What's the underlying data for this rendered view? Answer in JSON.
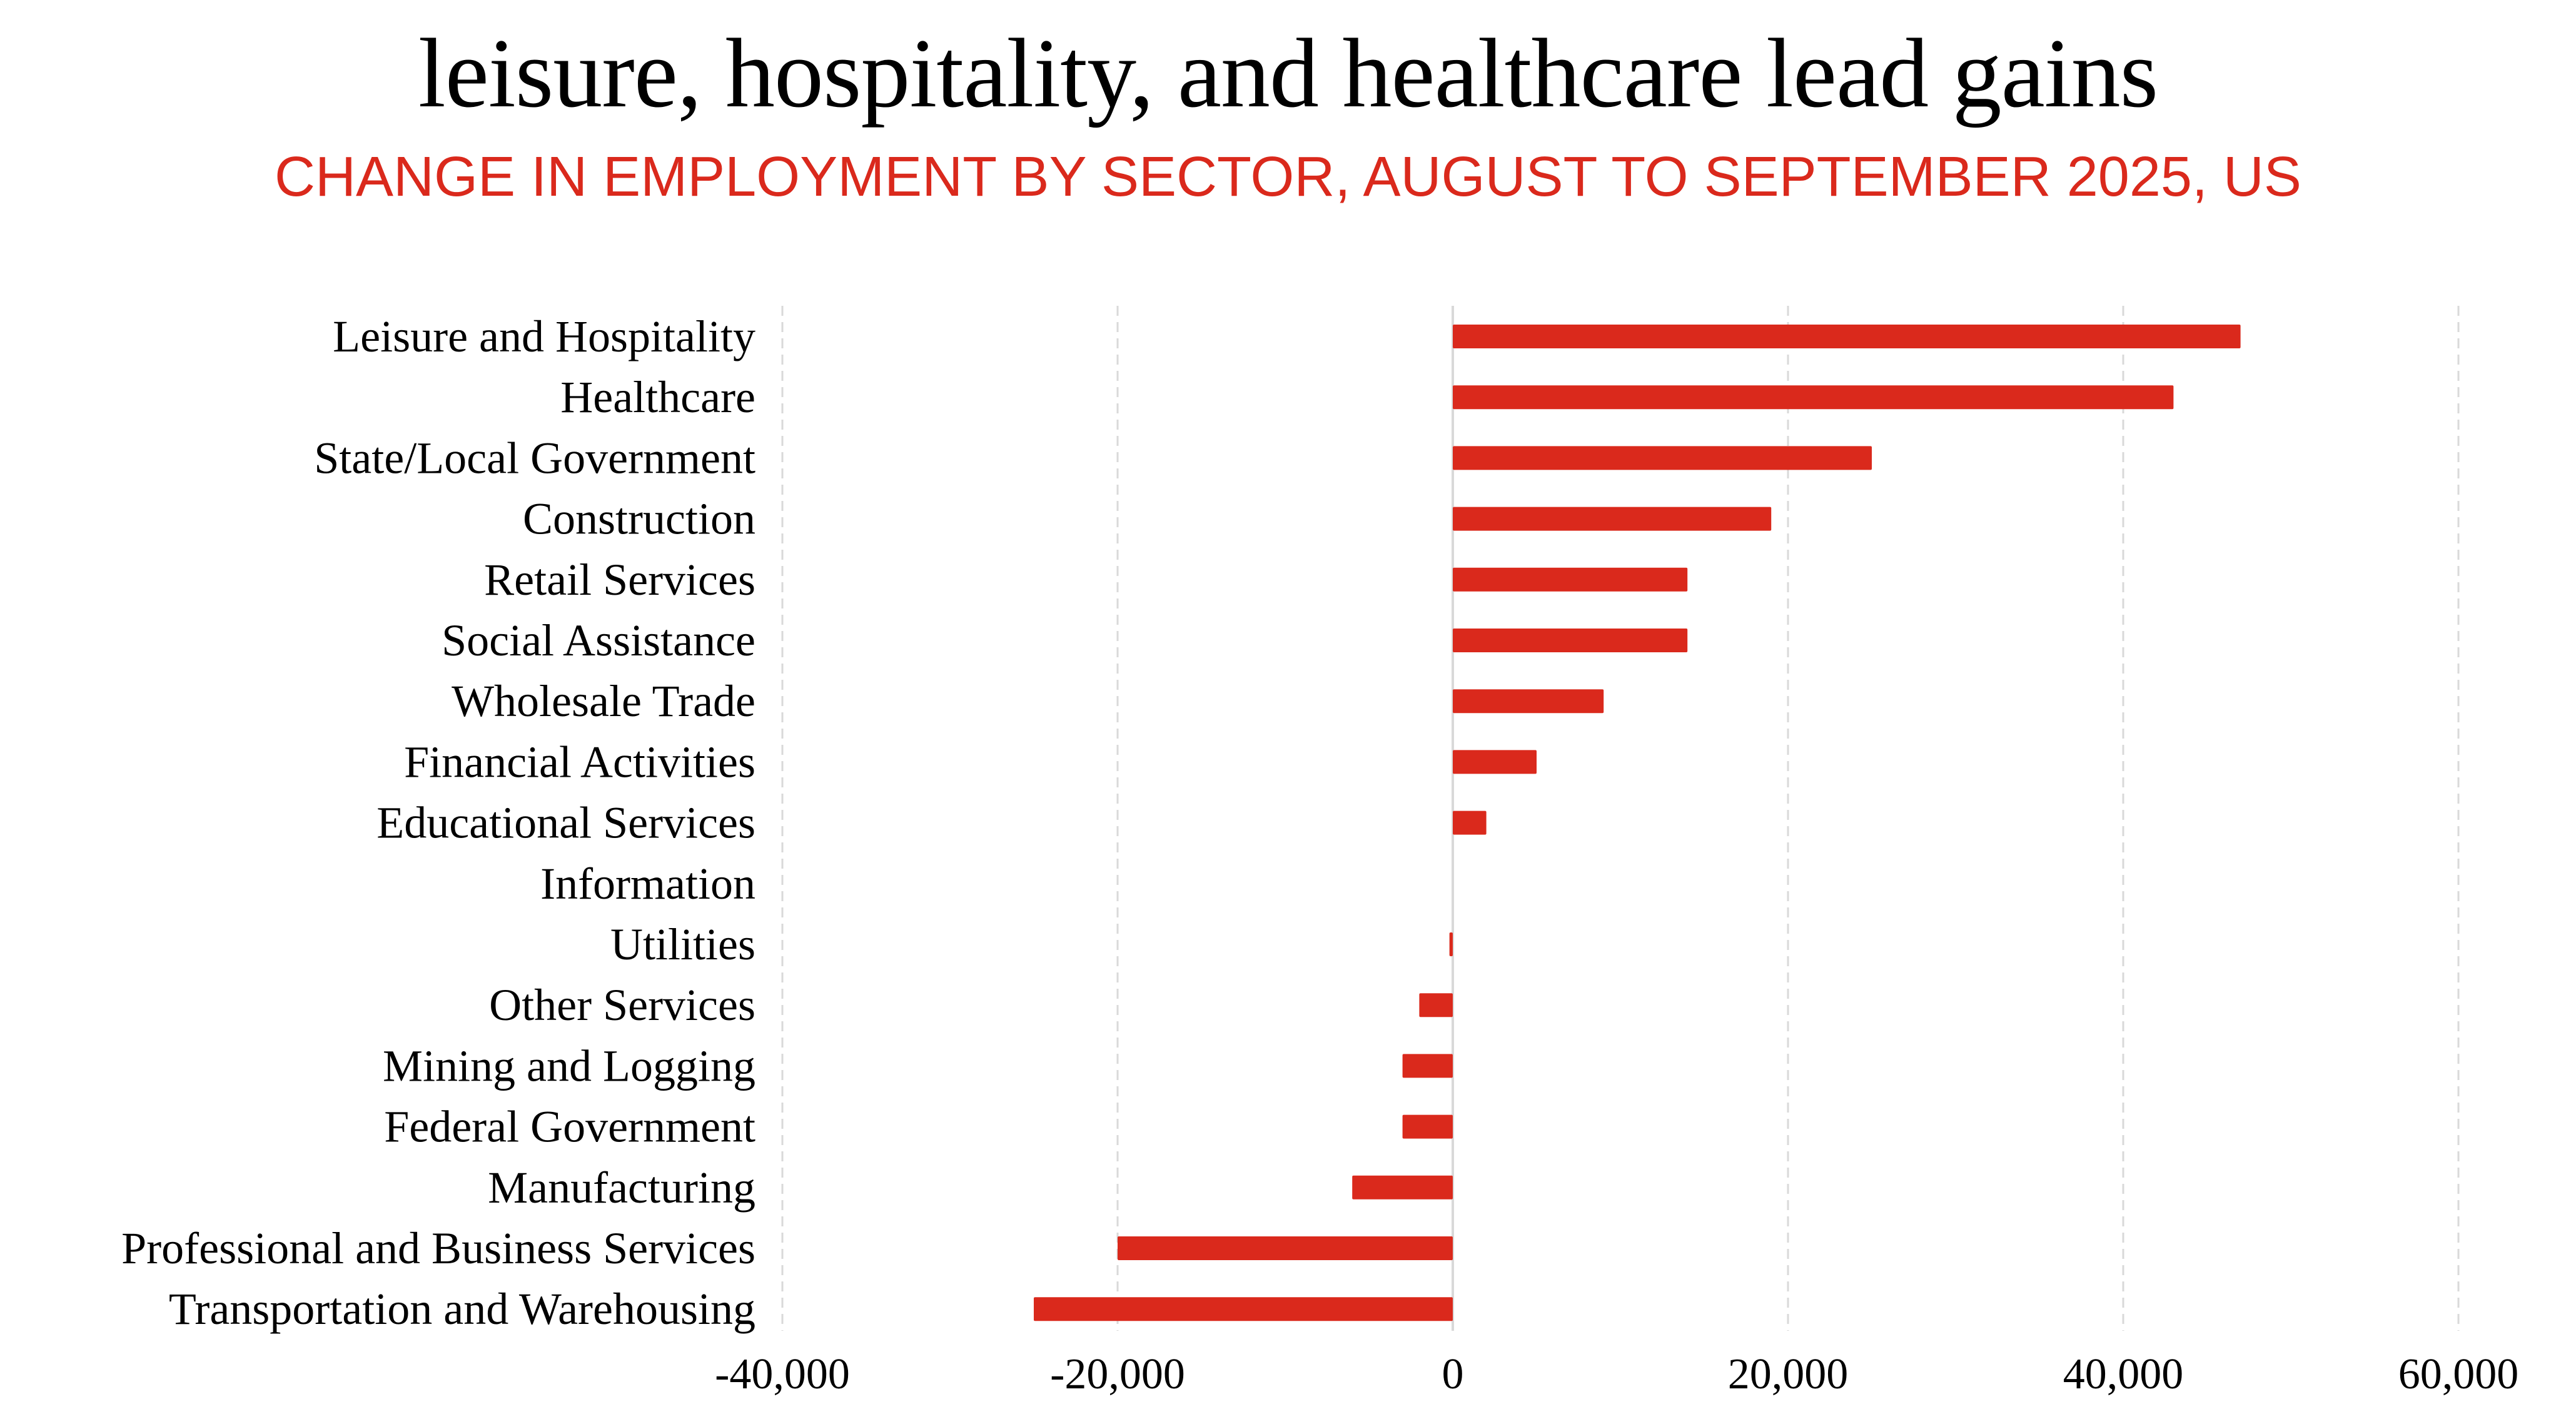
{
  "header": {
    "title": "leisure, hospitality, and healthcare lead gains",
    "subtitle": "CHANGE IN EMPLOYMENT BY SECTOR, AUGUST TO SEPTEMBER 2025, US"
  },
  "colors": {
    "bar": "#DA291C",
    "subtitle": "#DA291C",
    "gridline": "#D9D9D9",
    "zero_line": "#D9D9D9",
    "text": "#000000"
  },
  "chart_data": {
    "type": "bar",
    "orientation": "horizontal",
    "title": "leisure, hospitality, and healthcare lead gains",
    "subtitle": "CHANGE IN EMPLOYMENT BY SECTOR, AUGUST TO SEPTEMBER 2025, US",
    "xlabel": "",
    "ylabel": "",
    "categories": [
      "Leisure and Hospitality",
      "Healthcare",
      "State/Local Government",
      "Construction",
      "Retail Services",
      "Social Assistance",
      "Wholesale Trade",
      "Financial Activities",
      "Educational Services",
      "Information",
      "Utilities",
      "Other Services",
      "Mining and Logging",
      "Federal Government",
      "Manufacturing",
      "Professional and Business Services",
      "Transportation and Warehousing"
    ],
    "values": [
      47000,
      43000,
      25000,
      19000,
      14000,
      14000,
      9000,
      5000,
      2000,
      0,
      -200,
      -2000,
      -3000,
      -3000,
      -6000,
      -20000,
      -25000
    ],
    "xlim": [
      -40000,
      60000
    ],
    "xticks": [
      -40000,
      -20000,
      0,
      20000,
      40000,
      60000
    ],
    "xtick_labels": [
      "-40,000",
      "-20,000",
      "0",
      "20,000",
      "40,000",
      "60,000"
    ],
    "grid": "vertical dashed",
    "legend": "none"
  }
}
